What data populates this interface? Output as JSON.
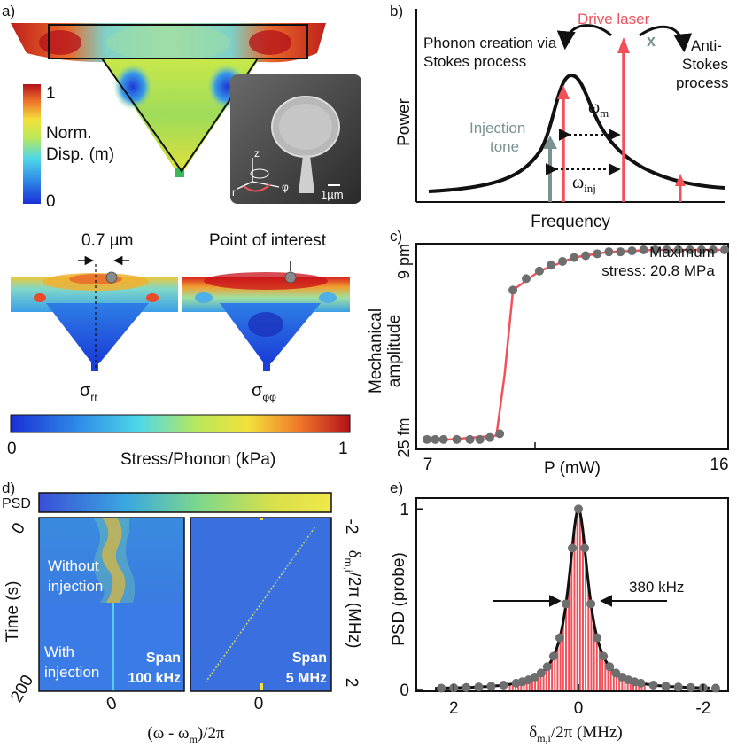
{
  "panels": {
    "a": {
      "label": "a)",
      "colorbar": {
        "max": "1",
        "label_line1": "Norm.",
        "label_line2": "Disp. (m)",
        "min": "0"
      },
      "sem": {
        "scale": "1µm",
        "axis_z": "z",
        "axis_r": "r",
        "axis_phi": "φ"
      },
      "stress": {
        "distance": "0.7 µm",
        "point_label": "Point of interest",
        "sigma_rr": "σ",
        "sigma_rr_sub": "rr",
        "sigma_pp": "σ",
        "sigma_pp_sub": "φφ",
        "bar_min": "0",
        "bar_max": "1",
        "bar_label": "Stress/Phonon (kPa)"
      }
    },
    "b": {
      "label": "b)",
      "creation_line1": "Phonon creation via",
      "creation_line2": "Stokes process",
      "drive": "Drive laser",
      "anti_line1": "Anti-",
      "anti_line2": "Stokes",
      "anti_line3": "process",
      "anti_mark": "x",
      "injection_line1": "Injection",
      "injection_line2": "tone",
      "omega_m": "ω",
      "omega_m_sub": "m",
      "omega_inj": "ω",
      "omega_inj_sub": "inj",
      "ylabel": "Power",
      "xlabel": "Frequency"
    },
    "c": {
      "label": "c)",
      "annotation_line1": "Maximum",
      "annotation_line2": "stress: 20.8 MPa"
    },
    "d": {
      "label": "d)",
      "psd": "PSD",
      "ylabel": "Time (s)",
      "yticks": [
        "0",
        "200"
      ],
      "without_line1": "Without",
      "without_line2": "injection",
      "with_line1": "With",
      "with_line2": "injection",
      "span1_line1": "Span",
      "span1_line2": "100 kHz",
      "span2_line1": "Span",
      "span2_line2": "5 MHz",
      "xtick_left": "0",
      "xtick_right": "0",
      "xlabel": "(ω - ω",
      "xlabel_sub": "m",
      "xlabel_end": ")/2π",
      "right_ticks": [
        "-2",
        "2"
      ],
      "right_label": "δ",
      "right_label_sub": "m,i",
      "right_label_end": "/2π (MHz)"
    },
    "e": {
      "label": "e)",
      "fwhm": "380 kHz",
      "xlabel": "δ",
      "xlabel_sub": "m,i",
      "xlabel_end": "/2π (MHz)"
    }
  },
  "colors": {
    "red": "#f2515a",
    "grey_marker": "#6e6e6e",
    "injection": "#7a9290",
    "black": "#111111"
  },
  "chart_data": [
    {
      "id": "c",
      "type": "scatter",
      "title": "",
      "xlabel": "P (mW)",
      "ylabel_line1": "Mechanical",
      "ylabel_line2": "amplitude",
      "xlim": [
        7,
        16
      ],
      "xticks": [
        "7",
        "16"
      ],
      "yticks": [
        "25 fm",
        "9 pm"
      ],
      "y_low_label": "25 fm",
      "y_high_label": "9 pm",
      "x": [
        7.0,
        7.25,
        7.5,
        7.9,
        8.3,
        8.6,
        8.9,
        9.2,
        9.6,
        10.0,
        10.4,
        10.75,
        11.1,
        11.45,
        11.8,
        12.15,
        12.5,
        12.85,
        13.2,
        13.55,
        13.9,
        14.25,
        14.6,
        14.95,
        15.3,
        15.65,
        16.0
      ],
      "y_norm": [
        0.01,
        0.01,
        0.01,
        0.01,
        0.01,
        0.01,
        0.02,
        0.04,
        0.79,
        0.85,
        0.89,
        0.92,
        0.94,
        0.96,
        0.97,
        0.98,
        0.99,
        0.99,
        0.995,
        1.0,
        1.0,
        1.0,
        1.0,
        1.0,
        1.0,
        1.0,
        1.0
      ],
      "fit_x": [
        7.0,
        9.1,
        9.35,
        9.6,
        10.4,
        11.45,
        12.5,
        13.9,
        16.0
      ],
      "fit_y_norm": [
        0.0,
        0.03,
        0.35,
        0.79,
        0.89,
        0.96,
        0.99,
        1.0,
        1.0
      ]
    },
    {
      "id": "e",
      "type": "scatter",
      "xlabel": "δm,i/2π (MHz)",
      "ylabel": "PSD (probe)",
      "xlim": [
        2.6,
        -2.4
      ],
      "ylim": [
        0,
        1.06
      ],
      "xticks": [
        "2",
        "0",
        "-2"
      ],
      "xtick_values": [
        2,
        0,
        -2
      ],
      "yticks": [
        "0",
        "1"
      ],
      "ytick_values": [
        0,
        1
      ],
      "center": 0,
      "fwhm_mhz": 0.38,
      "markers_x": [
        2.2,
        2.0,
        1.8,
        1.6,
        1.4,
        1.2,
        1.0,
        0.9,
        0.8,
        0.7,
        0.6,
        0.5,
        0.4,
        0.3,
        0.2,
        0.1,
        0.0,
        -0.1,
        -0.2,
        -0.3,
        -0.4,
        -0.5,
        -0.6,
        -0.7,
        -0.8,
        -0.9,
        -1.0,
        -1.2,
        -1.4,
        -1.6,
        -1.8,
        -2.0,
        -2.2
      ]
    }
  ]
}
